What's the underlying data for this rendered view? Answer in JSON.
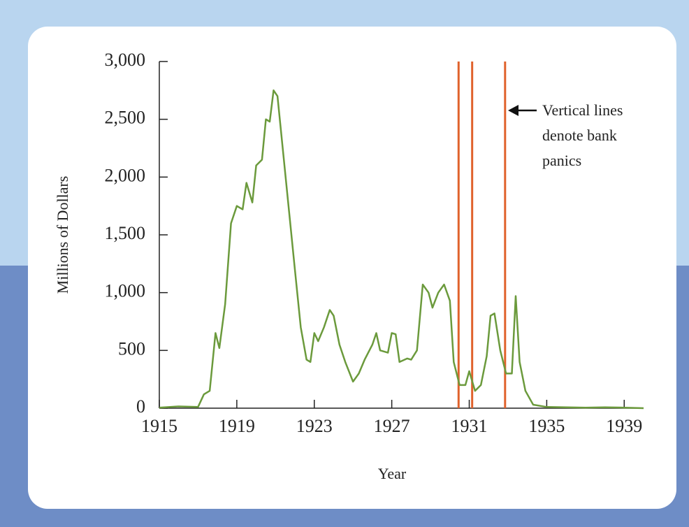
{
  "chart_data": {
    "type": "line",
    "y_label": "Millions of Dollars",
    "x_label": "Year",
    "annotation": [
      "Vertical lines",
      "denote bank",
      "panics"
    ],
    "x": [
      1915,
      1916,
      1917,
      1917.3,
      1917.6,
      1917.9,
      1918.1,
      1918.4,
      1918.7,
      1919,
      1919.3,
      1919.5,
      1919.8,
      1920,
      1920.3,
      1920.5,
      1920.7,
      1920.9,
      1921.1,
      1921.4,
      1921.7,
      1922,
      1922.3,
      1922.6,
      1922.8,
      1923,
      1923.2,
      1923.5,
      1923.8,
      1924,
      1924.3,
      1924.6,
      1925,
      1925.3,
      1925.6,
      1926,
      1926.2,
      1926.4,
      1926.8,
      1927,
      1927.2,
      1927.4,
      1927.8,
      1928,
      1928.3,
      1928.6,
      1928.9,
      1929.1,
      1929.4,
      1929.7,
      1930,
      1930.2,
      1930.5,
      1930.8,
      1931,
      1931.3,
      1931.6,
      1931.9,
      1932.1,
      1932.3,
      1932.6,
      1932.9,
      1933.2,
      1933.4,
      1933.6,
      1933.9,
      1934.3,
      1935,
      1937,
      1938,
      1939,
      1940
    ],
    "series": [
      {
        "color": "#6b9a3c",
        "values": [
          5,
          15,
          10,
          120,
          150,
          650,
          520,
          900,
          1600,
          1750,
          1720,
          1950,
          1780,
          2100,
          2150,
          2500,
          2480,
          2750,
          2700,
          2200,
          1700,
          1200,
          700,
          420,
          400,
          650,
          580,
          700,
          850,
          800,
          550,
          400,
          230,
          300,
          420,
          550,
          650,
          500,
          480,
          650,
          640,
          400,
          430,
          420,
          500,
          1070,
          1000,
          870,
          1000,
          1070,
          930,
          400,
          200,
          200,
          320,
          150,
          200,
          450,
          800,
          820,
          500,
          300,
          300,
          970,
          400,
          150,
          30,
          10,
          5,
          8,
          5,
          0
        ]
      }
    ],
    "panic_lines": [
      1930.45,
      1931.15,
      1932.85
    ],
    "panic_color": "#e0622c",
    "xlim": [
      1915,
      1940
    ],
    "xticks": [
      1915,
      1919,
      1923,
      1927,
      1931,
      1935,
      1939
    ],
    "ylim": [
      0,
      3000
    ],
    "yticks": [
      0,
      500,
      {
        "value": 1000,
        "label": "1,000"
      },
      {
        "value": 1500,
        "label": "1,500"
      },
      {
        "value": 2000,
        "label": "2,000"
      },
      {
        "value": 2500,
        "label": "2,500"
      },
      {
        "value": 3000,
        "label": "3,000"
      }
    ]
  }
}
